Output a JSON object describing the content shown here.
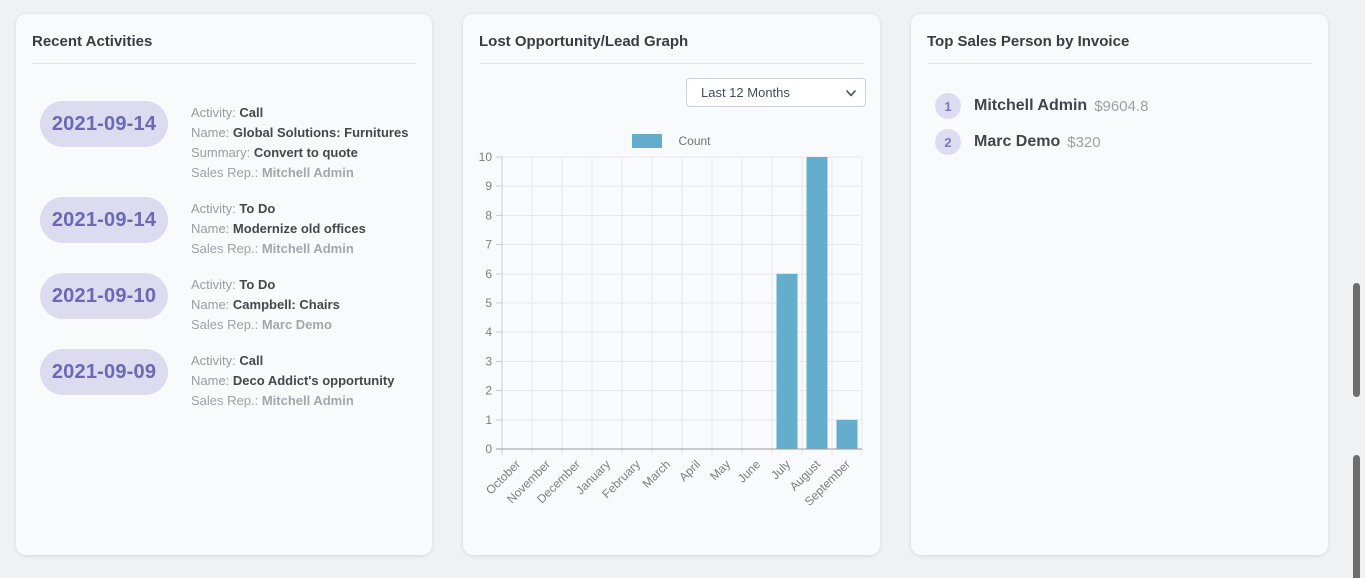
{
  "theme": {
    "page_bg": "#f0f1f3",
    "card_bg": "#f9fafc",
    "pill_bg": "#dcdbf0",
    "pill_text": "#6b68b5",
    "accent_bar": "#65adcc"
  },
  "recent_activities": {
    "title": "Recent Activities",
    "labels": {
      "activity": "Activity:",
      "name": "Name:",
      "summary": "Summary:",
      "sales_rep": "Sales Rep.:"
    },
    "items": [
      {
        "date": "2021-09-14",
        "activity": "Call",
        "name": "Global Solutions: Furnitures",
        "summary": "Convert to quote",
        "sales_rep": "Mitchell Admin"
      },
      {
        "date": "2021-09-14",
        "activity": "To Do",
        "name": "Modernize old offices",
        "sales_rep": "Mitchell Admin"
      },
      {
        "date": "2021-09-10",
        "activity": "To Do",
        "name": "Campbell: Chairs",
        "sales_rep": "Marc Demo"
      },
      {
        "date": "2021-09-09",
        "activity": "Call",
        "name": "Deco Addict's opportunity",
        "sales_rep": "Mitchell Admin"
      }
    ]
  },
  "lost_graph": {
    "title": "Lost Opportunity/Lead Graph",
    "filter": {
      "selected": "Last 12 Months"
    },
    "legend": {
      "label": "Count"
    }
  },
  "chart_data": {
    "type": "bar",
    "title": "Lost Opportunity/Lead Graph",
    "categories": [
      "October",
      "November",
      "December",
      "January",
      "February",
      "March",
      "April",
      "May",
      "June",
      "July",
      "August",
      "September"
    ],
    "series": [
      {
        "name": "Count",
        "color": "#65adcc",
        "values": [
          0,
          0,
          0,
          0,
          0,
          0,
          0,
          0,
          0,
          6,
          10,
          1
        ]
      }
    ],
    "xlabel": "",
    "ylabel": "",
    "ylim": [
      0,
      10
    ],
    "yticks": [
      0,
      1,
      2,
      3,
      4,
      5,
      6,
      7,
      8,
      9,
      10
    ],
    "grid": true,
    "legend_position": "top"
  },
  "top_sales": {
    "title": "Top Sales Person by Invoice",
    "items": [
      {
        "rank": "1",
        "name": "Mitchell Admin",
        "amount": "$9604.8"
      },
      {
        "rank": "2",
        "name": "Marc Demo",
        "amount": "$320"
      }
    ]
  }
}
